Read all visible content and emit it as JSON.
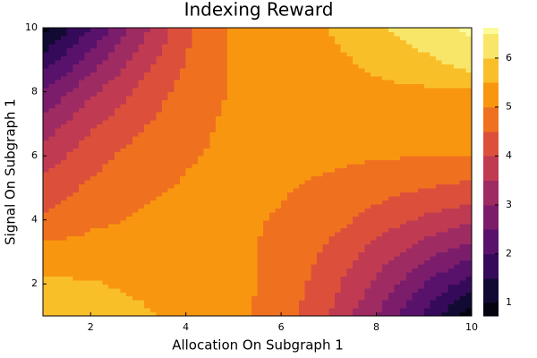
{
  "chart_data": {
    "type": "contour",
    "title": "Indexing Reward",
    "xlabel": "Allocation On Subgraph 1",
    "ylabel": "Signal On Subgraph 1",
    "x": [
      1,
      2,
      3,
      4,
      5,
      6,
      7,
      8,
      9,
      10
    ],
    "y": [
      1,
      2,
      3,
      4,
      5,
      6,
      7,
      8,
      9,
      10
    ],
    "z": [
      [
        5.8,
        5.75,
        5.6,
        5.35,
        5.15,
        4.75,
        4.0,
        3.0,
        1.9,
        0.7
      ],
      [
        5.6,
        5.55,
        5.4,
        5.3,
        5.15,
        4.85,
        4.2,
        3.4,
        2.5,
        1.7
      ],
      [
        5.2,
        5.2,
        5.25,
        5.2,
        5.1,
        4.9,
        4.4,
        3.8,
        3.2,
        2.7
      ],
      [
        4.6,
        4.9,
        5.05,
        5.15,
        5.1,
        4.95,
        4.7,
        4.3,
        3.9,
        3.6
      ],
      [
        4.2,
        4.6,
        4.9,
        5.05,
        5.1,
        5.05,
        4.9,
        4.7,
        4.5,
        4.35
      ],
      [
        3.7,
        4.3,
        4.7,
        4.95,
        5.1,
        5.15,
        5.1,
        5.05,
        5.0,
        4.98
      ],
      [
        3.2,
        3.9,
        4.4,
        4.85,
        5.1,
        5.2,
        5.25,
        5.3,
        5.3,
        5.3
      ],
      [
        2.5,
        3.4,
        4.1,
        4.7,
        5.05,
        5.25,
        5.35,
        5.4,
        5.4,
        5.45
      ],
      [
        1.7,
        2.7,
        3.7,
        4.5,
        5.05,
        5.3,
        5.4,
        5.6,
        5.9,
        6.3
      ],
      [
        0.8,
        2.0,
        3.2,
        4.4,
        5.1,
        5.35,
        5.5,
        5.9,
        6.3,
        6.6
      ]
    ],
    "levels": [
      1,
      1.5,
      2,
      2.5,
      3,
      3.5,
      4,
      4.5,
      5,
      5.5,
      6,
      6.5
    ],
    "zlim": [
      0.73,
      6.62
    ],
    "zticks": [
      1,
      2,
      3,
      4,
      5,
      6
    ],
    "colormap": [
      "#000004",
      "#160b39",
      "#420a68",
      "#6a176e",
      "#932667",
      "#bc3754",
      "#dd513a",
      "#f37819",
      "#fca50a",
      "#f6d746",
      "#fcffa4"
    ],
    "xlim": [
      1,
      10
    ],
    "xticks": [
      2,
      4,
      6,
      8,
      10
    ],
    "ylim": [
      1,
      10
    ],
    "yticks": [
      2,
      4,
      6,
      8,
      10
    ]
  }
}
